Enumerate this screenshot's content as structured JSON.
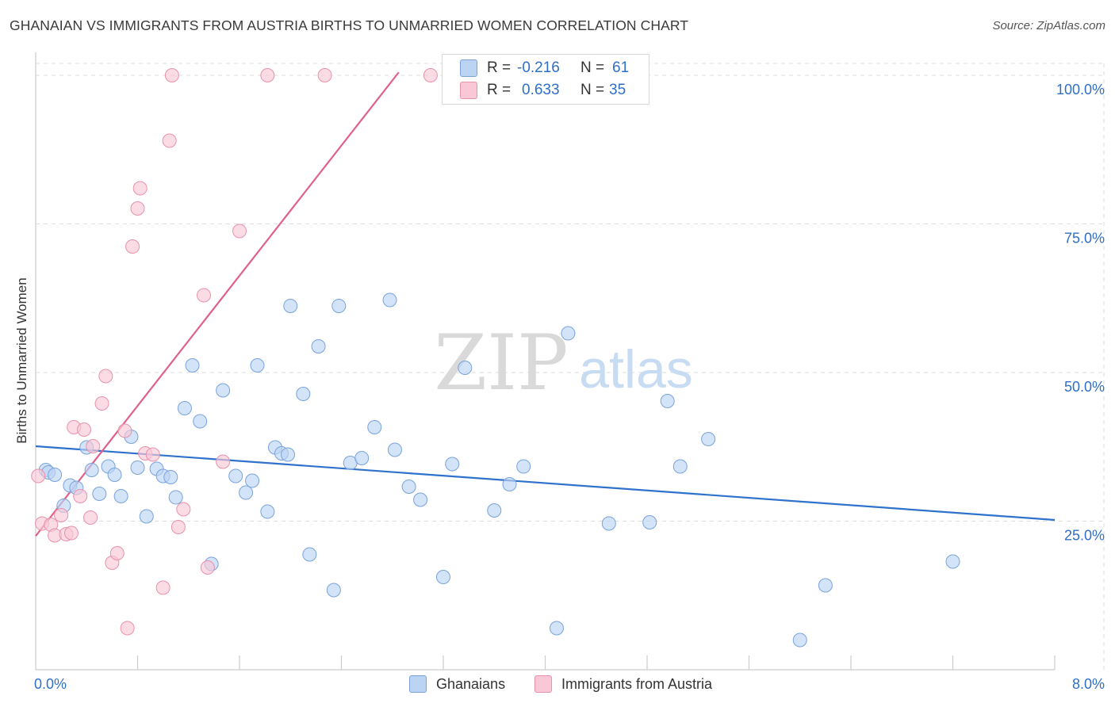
{
  "title": "GHANAIAN VS IMMIGRANTS FROM AUSTRIA BIRTHS TO UNMARRIED WOMEN CORRELATION CHART",
  "source": "Source: ZipAtlas.com",
  "watermark": {
    "zip": "ZIP",
    "atlas": "atlas"
  },
  "legend": {
    "rows": [
      {
        "r_label": "R = ",
        "r_value": "-0.216",
        "n_label": "N = ",
        "n_value": "61"
      },
      {
        "r_label": "R = ",
        "r_value": "0.633",
        "n_label": "N = ",
        "n_value": "35"
      }
    ]
  },
  "colors": {
    "blue_fill": "#bcd4f4",
    "blue_stroke": "#7aa3db",
    "blue_line": "#2f72cc",
    "pink_fill": "#f9c7d6",
    "pink_stroke": "#e892ac",
    "pink_line": "#e0608c",
    "grid": "#dddddd",
    "tick_text": "#2f6fc6"
  },
  "chart_data": {
    "type": "scatter",
    "title": "GHANAIAN VS IMMIGRANTS FROM AUSTRIA BIRTHS TO UNMARRIED WOMEN CORRELATION CHART",
    "xlabel": "",
    "ylabel": "Births to Unmarried Women",
    "xlim": [
      0,
      8
    ],
    "ylim": [
      0,
      102
    ],
    "x_tick_labels": [
      "0.0%",
      "8.0%"
    ],
    "y_ticks": [
      25,
      50,
      75,
      100
    ],
    "y_tick_labels": [
      "25.0%",
      "50.0%",
      "75.0%",
      "100.0%"
    ],
    "legend_position": "top-center",
    "series": [
      {
        "name": "Ghanaians",
        "color": "#bcd4f4",
        "trend": {
          "x": [
            0.0,
            8.0
          ],
          "y": [
            37.6,
            25.2
          ]
        },
        "points": [
          [
            0.08,
            33.6
          ],
          [
            0.1,
            33.2
          ],
          [
            0.15,
            32.8
          ],
          [
            0.22,
            27.6
          ],
          [
            0.27,
            31.0
          ],
          [
            0.32,
            30.6
          ],
          [
            0.4,
            37.4
          ],
          [
            0.44,
            33.6
          ],
          [
            0.5,
            29.6
          ],
          [
            0.57,
            34.2
          ],
          [
            0.62,
            32.8
          ],
          [
            0.67,
            29.2
          ],
          [
            0.75,
            39.2
          ],
          [
            0.8,
            34.0
          ],
          [
            0.87,
            25.8
          ],
          [
            0.95,
            33.8
          ],
          [
            1.0,
            32.6
          ],
          [
            1.06,
            32.4
          ],
          [
            1.1,
            29.0
          ],
          [
            1.17,
            44.0
          ],
          [
            1.23,
            51.2
          ],
          [
            1.29,
            41.8
          ],
          [
            1.38,
            17.8
          ],
          [
            1.47,
            47.0
          ],
          [
            1.57,
            32.6
          ],
          [
            1.65,
            29.8
          ],
          [
            1.7,
            31.8
          ],
          [
            1.74,
            51.2
          ],
          [
            1.82,
            26.6
          ],
          [
            1.88,
            37.4
          ],
          [
            1.93,
            36.4
          ],
          [
            1.98,
            36.2
          ],
          [
            2.0,
            61.2
          ],
          [
            2.1,
            46.4
          ],
          [
            2.15,
            19.4
          ],
          [
            2.22,
            54.4
          ],
          [
            2.34,
            13.4
          ],
          [
            2.38,
            61.2
          ],
          [
            2.47,
            34.8
          ],
          [
            2.56,
            35.6
          ],
          [
            2.66,
            40.8
          ],
          [
            2.78,
            62.2
          ],
          [
            2.82,
            37.0
          ],
          [
            2.93,
            30.8
          ],
          [
            3.02,
            28.6
          ],
          [
            3.2,
            15.6
          ],
          [
            3.27,
            34.6
          ],
          [
            3.37,
            50.8
          ],
          [
            3.6,
            26.8
          ],
          [
            3.72,
            31.2
          ],
          [
            3.83,
            34.2
          ],
          [
            4.09,
            7.0
          ],
          [
            4.18,
            56.6
          ],
          [
            4.5,
            24.6
          ],
          [
            4.82,
            24.8
          ],
          [
            4.96,
            45.2
          ],
          [
            5.06,
            34.2
          ],
          [
            5.28,
            38.8
          ],
          [
            6.2,
            14.2
          ],
          [
            6.0,
            5.0
          ],
          [
            7.2,
            18.2
          ]
        ]
      },
      {
        "name": "Immigrants from Austria",
        "color": "#f9c7d6",
        "trend": {
          "x": [
            0.0,
            2.85
          ],
          "y": [
            22.5,
            100.5
          ]
        },
        "points": [
          [
            0.02,
            32.6
          ],
          [
            0.05,
            24.6
          ],
          [
            0.12,
            24.4
          ],
          [
            0.15,
            22.6
          ],
          [
            0.2,
            26.0
          ],
          [
            0.24,
            22.8
          ],
          [
            0.28,
            23.0
          ],
          [
            0.3,
            40.8
          ],
          [
            0.38,
            40.4
          ],
          [
            0.35,
            29.2
          ],
          [
            0.43,
            25.6
          ],
          [
            0.45,
            37.6
          ],
          [
            0.52,
            44.8
          ],
          [
            0.55,
            49.4
          ],
          [
            0.6,
            18.0
          ],
          [
            0.64,
            19.6
          ],
          [
            0.7,
            40.2
          ],
          [
            0.72,
            7.0
          ],
          [
            0.76,
            71.2
          ],
          [
            0.8,
            77.6
          ],
          [
            0.82,
            81.0
          ],
          [
            0.86,
            36.4
          ],
          [
            0.92,
            36.2
          ],
          [
            1.0,
            13.8
          ],
          [
            1.05,
            89.0
          ],
          [
            1.07,
            100.0
          ],
          [
            1.12,
            24.0
          ],
          [
            1.16,
            27.0
          ],
          [
            1.32,
            63.0
          ],
          [
            1.35,
            17.2
          ],
          [
            1.47,
            35.0
          ],
          [
            1.6,
            73.8
          ],
          [
            1.82,
            100.0
          ],
          [
            2.27,
            100.0
          ],
          [
            3.1,
            100.0
          ]
        ]
      }
    ]
  },
  "bottom_legend": {
    "blue": "Ghanaians",
    "pink": "Immigrants from Austria"
  }
}
